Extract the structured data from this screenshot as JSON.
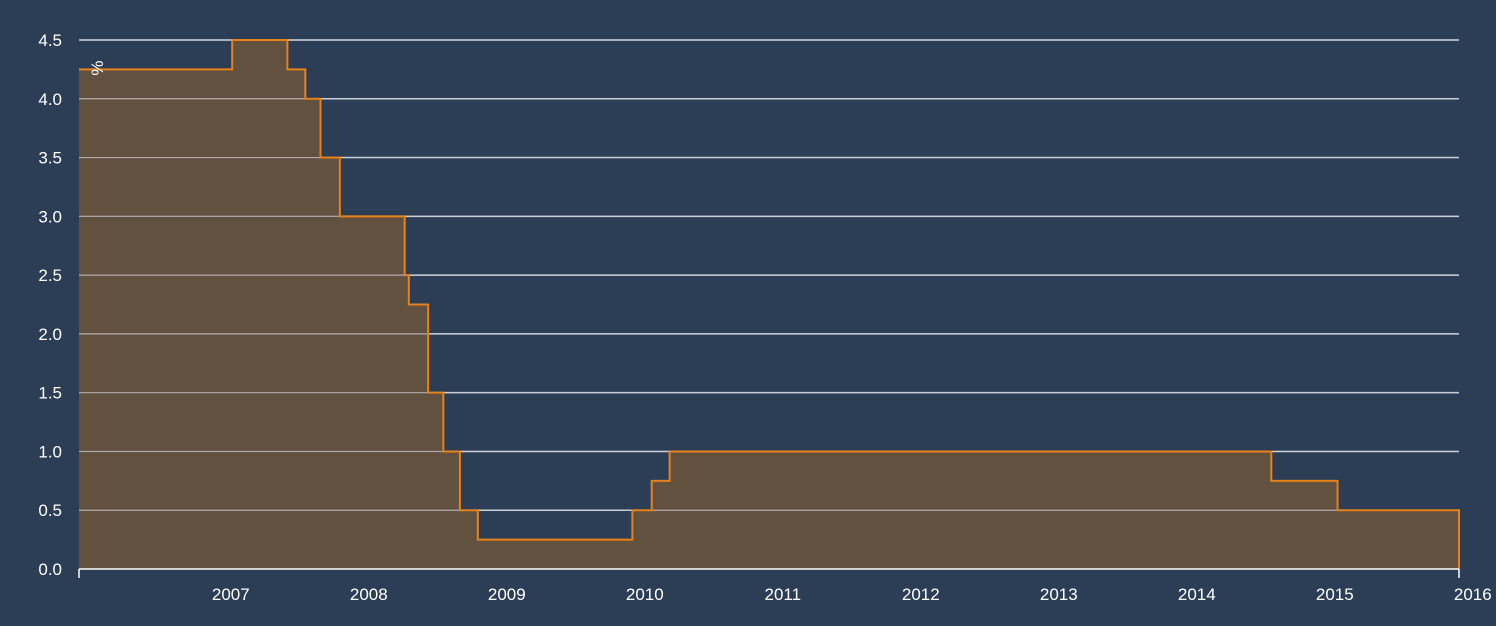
{
  "chart_data": {
    "type": "area",
    "title": "",
    "xlabel": "",
    "ylabel": "",
    "unit_label": "%",
    "x_domain": [
      2006.4,
      2016.4
    ],
    "ylim": [
      0,
      4.5
    ],
    "y_ticks": [
      "0.0",
      "0.5",
      "1.0",
      "1.5",
      "2.0",
      "2.5",
      "3.0",
      "3.5",
      "4.0",
      "4.5"
    ],
    "y_tick_values": [
      0,
      0.5,
      1,
      1.5,
      2,
      2.5,
      3,
      3.5,
      4,
      4.5
    ],
    "x_ticks": [
      "2007",
      "2008",
      "2009",
      "2010",
      "2011",
      "2012",
      "2013",
      "2014",
      "2015",
      "2016"
    ],
    "x_tick_values": [
      2007,
      2008,
      2009,
      2010,
      2011,
      2012,
      2013,
      2014,
      2015,
      2016
    ],
    "grid": true,
    "colors": {
      "background": "#2b3e55",
      "fill": "#63513f",
      "line": "#e8811a",
      "grid": "#c9ced6",
      "text": "#ffffff"
    },
    "series": [
      {
        "step": "after",
        "x": [
          2006.4,
          2007.51,
          2007.91,
          2008.04,
          2008.15,
          2008.29,
          2008.76,
          2008.79,
          2008.93,
          2009.04,
          2009.16,
          2009.29,
          2010.41,
          2010.55,
          2010.68,
          2015.04,
          2015.52,
          2016.4
        ],
        "values": [
          4.25,
          4.5,
          4.25,
          4.0,
          3.5,
          3.0,
          2.5,
          2.25,
          1.5,
          1.0,
          0.5,
          0.25,
          0.5,
          0.75,
          1.0,
          0.75,
          0.5,
          0.5
        ]
      }
    ]
  }
}
